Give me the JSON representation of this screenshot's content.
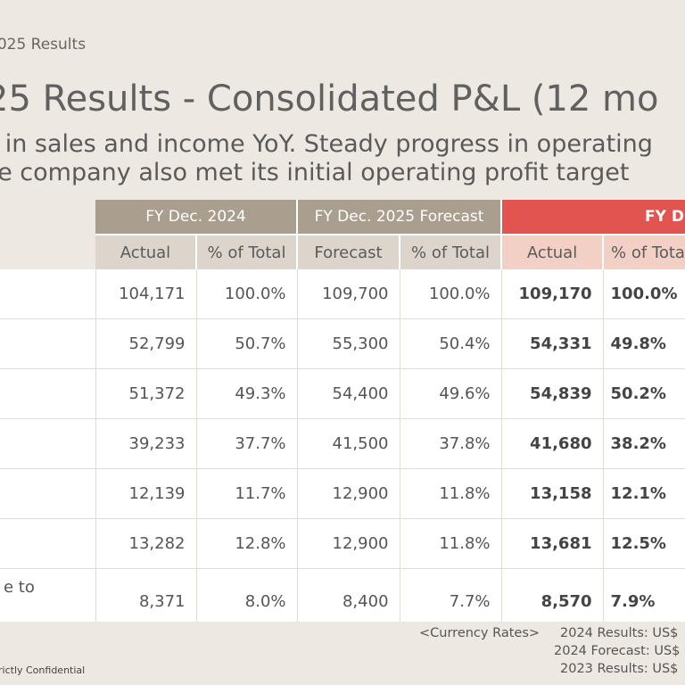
{
  "breadcrumb": "2025 Results",
  "title": "25 Results - Consolidated P&L (12 mo",
  "subtitle_line1": "d in sales and income YoY. Steady progress in operating",
  "subtitle_line2": "he company also met its initial operating profit target",
  "table": {
    "groups": {
      "fy2024": "FY Dec. 2024",
      "forecast": "FY Dec. 2025 Forecast",
      "fy2025": "FY D"
    },
    "subheaders": [
      "Actual",
      "% of Total",
      "Forecast",
      "% of Total",
      "Actual",
      "% of Tota"
    ],
    "rows": [
      {
        "label": "",
        "a24": "104,171",
        "p24": "100.0%",
        "fc": "109,700",
        "pfc": "100.0%",
        "a25": "109,170",
        "p25": "100.0%"
      },
      {
        "label": "",
        "a24": "52,799",
        "p24": "50.7%",
        "fc": "55,300",
        "pfc": "50.4%",
        "a25": "54,331",
        "p25": "49.8%"
      },
      {
        "label": "",
        "a24": "51,372",
        "p24": "49.3%",
        "fc": "54,400",
        "pfc": "49.6%",
        "a25": "54,839",
        "p25": "50.2%"
      },
      {
        "label": "",
        "a24": "39,233",
        "p24": "37.7%",
        "fc": "41,500",
        "pfc": "37.8%",
        "a25": "41,680",
        "p25": "38.2%"
      },
      {
        "label": "",
        "a24": "12,139",
        "p24": "11.7%",
        "fc": "12,900",
        "pfc": "11.8%",
        "a25": "13,158",
        "p25": "12.1%"
      },
      {
        "label": "",
        "a24": "13,282",
        "p24": "12.8%",
        "fc": "12,900",
        "pfc": "11.8%",
        "a25": "13,681",
        "p25": "12.5%"
      },
      {
        "label": "e to",
        "a24": "8,371",
        "p24": "8.0%",
        "fc": "8,400",
        "pfc": "7.7%",
        "a25": "8,570",
        "p25": "7.9%"
      }
    ]
  },
  "currency": {
    "heading": "<Currency Rates>",
    "line1": "2024 Results: US$",
    "line2": "2024 Forecast: US$",
    "line3": "2023 Results: US$"
  },
  "confidential": "rictly Confidential"
}
